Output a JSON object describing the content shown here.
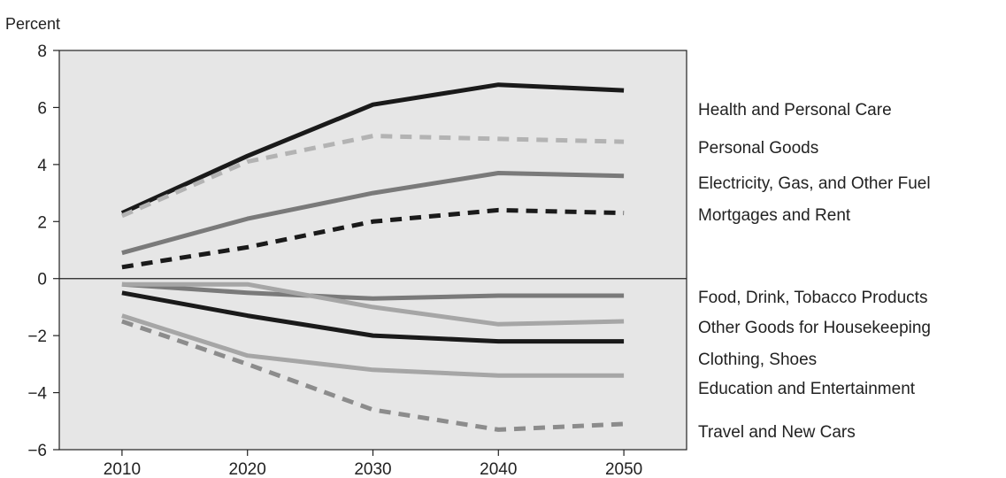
{
  "chart_data": {
    "type": "line",
    "ylabel": "Percent",
    "xlabel": "",
    "title": "",
    "x": [
      2010,
      2020,
      2030,
      2040,
      2050
    ],
    "xticks": [
      2010,
      2020,
      2030,
      2040,
      2050
    ],
    "xlim": [
      2005,
      2055
    ],
    "ylim": [
      -6,
      8
    ],
    "yticks": [
      -6,
      -4,
      -2,
      0,
      2,
      4,
      6,
      8
    ],
    "grid": false,
    "legend": "right",
    "background": "#e6e6e6",
    "series": [
      {
        "name": "Health and Personal Care",
        "values": [
          2.3,
          4.3,
          6.1,
          6.8,
          6.6
        ],
        "color": "#1a1a1a",
        "style": "solid"
      },
      {
        "name": "Personal Goods",
        "values": [
          2.2,
          4.1,
          5.0,
          4.9,
          4.8
        ],
        "color": "#b3b3b3",
        "style": "dashed"
      },
      {
        "name": "Electricity, Gas, and Other Fuel",
        "values": [
          0.9,
          2.1,
          3.0,
          3.7,
          3.6
        ],
        "color": "#7a7a7a",
        "style": "solid"
      },
      {
        "name": "Mortgages and Rent",
        "values": [
          0.4,
          1.1,
          2.0,
          2.4,
          2.3
        ],
        "color": "#1a1a1a",
        "style": "dashed"
      },
      {
        "name": "Food, Drink, Tobacco Products",
        "values": [
          -0.2,
          -0.5,
          -0.7,
          -0.6,
          -0.6
        ],
        "color": "#7a7a7a",
        "style": "solid"
      },
      {
        "name": "Other Goods for Housekeeping",
        "values": [
          -0.2,
          -0.2,
          -1.0,
          -1.6,
          -1.5
        ],
        "color": "#a6a6a6",
        "style": "solid"
      },
      {
        "name": "Clothing, Shoes",
        "values": [
          -0.5,
          -1.3,
          -2.0,
          -2.2,
          -2.2
        ],
        "color": "#1a1a1a",
        "style": "solid"
      },
      {
        "name": "Education and Entertainment",
        "values": [
          -1.3,
          -2.7,
          -3.2,
          -3.4,
          -3.4
        ],
        "color": "#a6a6a6",
        "style": "solid"
      },
      {
        "name": "Travel and New Cars",
        "values": [
          -1.5,
          -3.0,
          -4.6,
          -5.3,
          -5.1
        ],
        "color": "#8c8c8c",
        "style": "dashed"
      }
    ]
  }
}
